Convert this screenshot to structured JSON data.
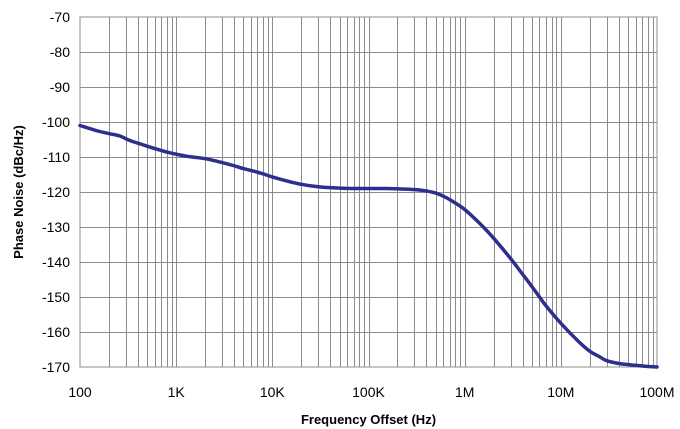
{
  "chart_data": {
    "type": "line",
    "title": "",
    "xlabel": "Frequency Offset (Hz)",
    "ylabel": "Phase Noise (dBc/Hz)",
    "x_scale": "log",
    "xlim": [
      100,
      100000000
    ],
    "ylim": [
      -170,
      -70
    ],
    "grid": true,
    "legend": "none",
    "x_ticks": [
      {
        "value": 100,
        "label": "100"
      },
      {
        "value": 1000,
        "label": "1K"
      },
      {
        "value": 10000,
        "label": "10K"
      },
      {
        "value": 100000,
        "label": "100K"
      },
      {
        "value": 1000000,
        "label": "1M"
      },
      {
        "value": 10000000,
        "label": "10M"
      },
      {
        "value": 100000000,
        "label": "100M"
      }
    ],
    "y_ticks": [
      {
        "value": -70,
        "label": "-70"
      },
      {
        "value": -80,
        "label": "-80"
      },
      {
        "value": -90,
        "label": "-90"
      },
      {
        "value": -100,
        "label": "-100"
      },
      {
        "value": -110,
        "label": "-110"
      },
      {
        "value": -120,
        "label": "-120"
      },
      {
        "value": -130,
        "label": "-130"
      },
      {
        "value": -140,
        "label": "-140"
      },
      {
        "value": -150,
        "label": "-150"
      },
      {
        "value": -160,
        "label": "-160"
      },
      {
        "value": -170,
        "label": "-170"
      }
    ],
    "series": [
      {
        "color": "#2e2e8c",
        "x": [
          100,
          150,
          200,
          260,
          330,
          450,
          600,
          800,
          1000,
          1300,
          1700,
          2200,
          3000,
          4000,
          5000,
          6500,
          8000,
          10000,
          14000,
          20000,
          30000,
          50000,
          70000,
          100000,
          150000,
          200000,
          300000,
          400000,
          500000,
          600000,
          700000,
          1000000,
          1500000,
          2000000,
          3000000,
          4000000,
          5000000,
          6000000,
          7000000,
          10000000,
          15000000,
          20000000,
          25000000,
          30000000,
          40000000,
          50000000,
          70000000,
          100000000
        ],
        "y": [
          -101,
          -102.5,
          -103.3,
          -104,
          -105.3,
          -106.5,
          -107.6,
          -108.6,
          -109.2,
          -109.8,
          -110.2,
          -110.7,
          -111.6,
          -112.5,
          -113.3,
          -114.1,
          -114.8,
          -115.7,
          -116.8,
          -117.8,
          -118.5,
          -118.9,
          -119.0,
          -119.0,
          -119.0,
          -119.1,
          -119.3,
          -119.7,
          -120.3,
          -121.2,
          -122.2,
          -125.0,
          -129.5,
          -133.2,
          -139.0,
          -143.5,
          -147.0,
          -150.0,
          -152.5,
          -157.5,
          -162.5,
          -165.5,
          -167.0,
          -168.2,
          -169.0,
          -169.3,
          -169.7,
          -170.0
        ]
      }
    ]
  }
}
